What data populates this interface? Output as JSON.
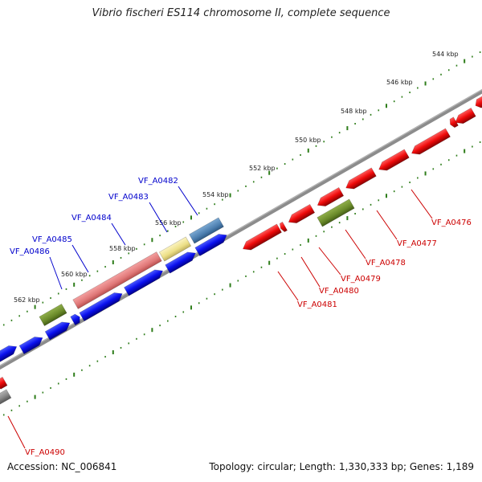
{
  "map": {
    "title": "Vibrio fischeri ES114 chromosome II, complete sequence",
    "accession": "Accession: NC_006841",
    "summary": "Topology: circular; Length: 1,330,333 bp; Genes: 1,189",
    "colors": {
      "backbone": "#8c8c8c",
      "forward_cds": "#0000ee",
      "reverse_cds": "#ee0000",
      "tick": "#2e7d1a",
      "forward_label": "#0000cc",
      "reverse_label": "#cc0000"
    },
    "kbp_ticks": [
      "544 kbp",
      "546 kbp",
      "548 kbp",
      "550 kbp",
      "552 kbp",
      "554 kbp",
      "556 kbp",
      "558 kbp",
      "560 kbp",
      "562 kbp"
    ],
    "forward_genes": [
      "VF_A0482",
      "VF_A0483",
      "VF_A0484",
      "VF_A0485",
      "VF_A0486"
    ],
    "reverse_genes": [
      "VF_A0476",
      "VF_A0477",
      "VF_A0478",
      "VF_A0479",
      "VF_A0480",
      "VF_A0481",
      "VF_A0490"
    ]
  }
}
